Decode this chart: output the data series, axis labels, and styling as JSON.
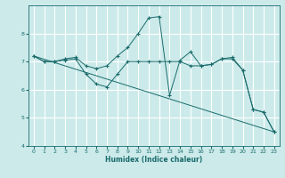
{
  "title": "",
  "xlabel": "Humidex (Indice chaleur)",
  "bg_color": "#cceaea",
  "line_color": "#1a6b6b",
  "grid_color": "#ffffff",
  "xlim": [
    -0.5,
    23.5
  ],
  "ylim": [
    4,
    9
  ],
  "yticks": [
    4,
    5,
    6,
    7,
    8
  ],
  "xticks": [
    0,
    1,
    2,
    3,
    4,
    5,
    6,
    7,
    8,
    9,
    10,
    11,
    12,
    13,
    14,
    15,
    16,
    17,
    18,
    19,
    20,
    21,
    22,
    23
  ],
  "series": [
    {
      "x": [
        0,
        1,
        2,
        3,
        4,
        5,
        6,
        7,
        8,
        9,
        10,
        11,
        12,
        13,
        14,
        15,
        16,
        17,
        18,
        19,
        20,
        21,
        22,
        23
      ],
      "y": [
        7.2,
        7.0,
        7.0,
        7.1,
        7.15,
        6.85,
        6.75,
        6.85,
        7.2,
        7.5,
        8.0,
        8.55,
        8.6,
        5.8,
        7.05,
        7.35,
        6.85,
        6.9,
        7.1,
        7.15,
        6.7,
        5.3,
        5.2,
        4.5
      ],
      "marker": true
    },
    {
      "x": [
        0,
        1,
        2,
        3,
        4,
        5,
        6,
        7,
        8,
        9,
        10,
        11,
        12,
        13,
        14,
        15,
        16,
        17,
        18,
        19,
        20,
        21,
        22,
        23
      ],
      "y": [
        7.2,
        7.0,
        7.0,
        7.05,
        7.1,
        6.55,
        6.2,
        6.1,
        6.55,
        7.0,
        7.0,
        7.0,
        7.0,
        7.0,
        7.0,
        6.85,
        6.85,
        6.9,
        7.1,
        7.1,
        6.7,
        5.3,
        5.2,
        4.5
      ],
      "marker": true
    },
    {
      "x": [
        0,
        23
      ],
      "y": [
        7.2,
        4.5
      ],
      "marker": false
    }
  ]
}
